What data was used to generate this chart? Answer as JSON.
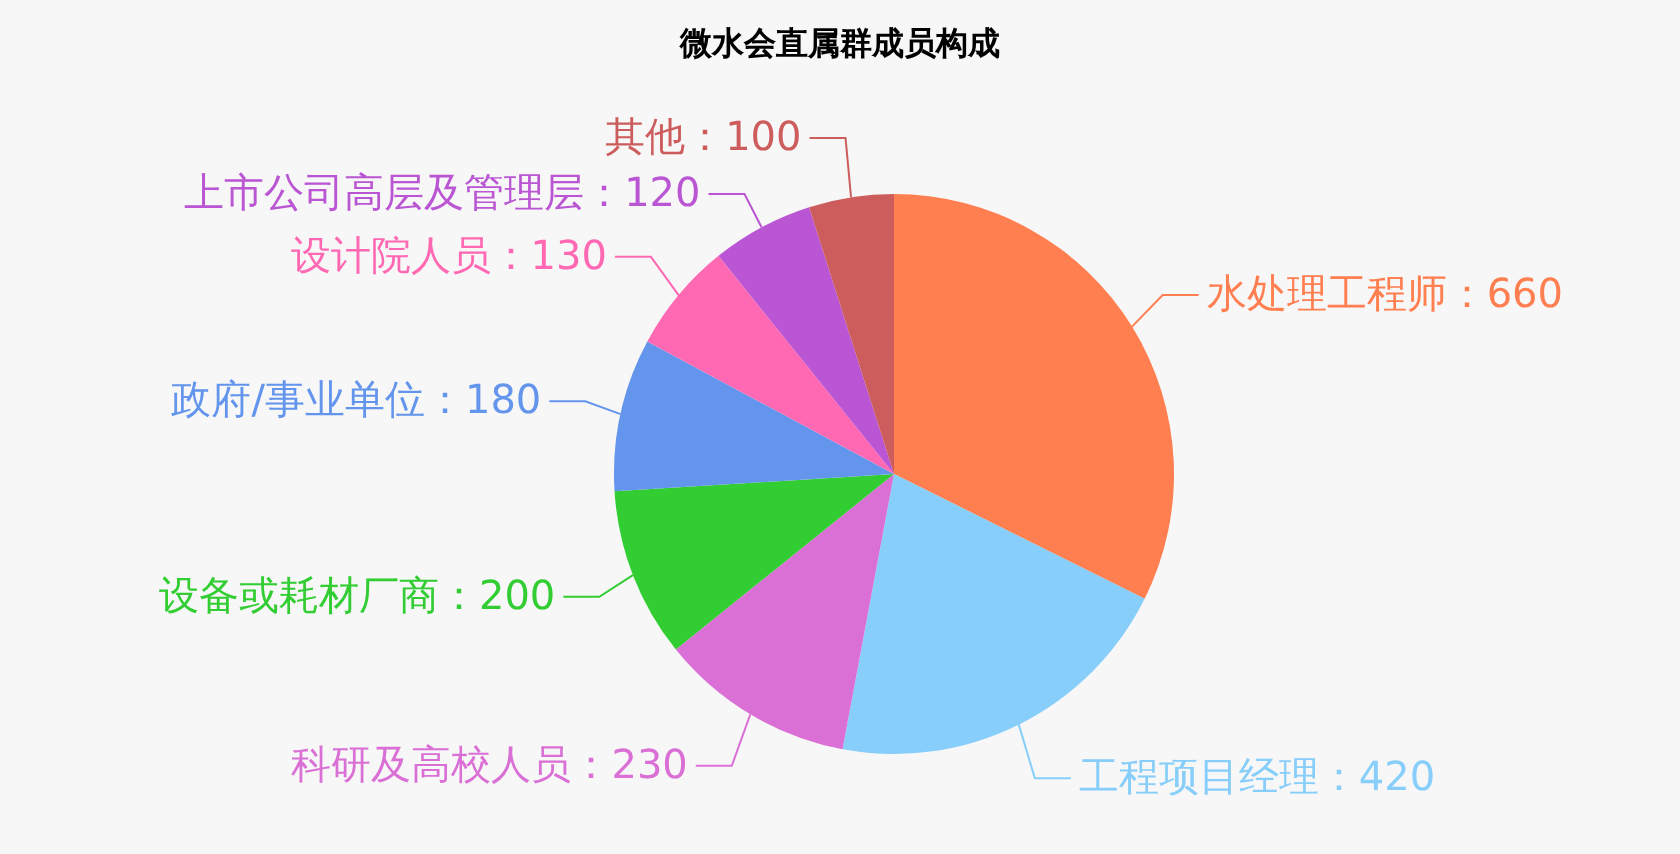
{
  "chart_data": {
    "type": "pie",
    "title": "微水会直属群成员构成",
    "categories": [
      "水处理工程师",
      "工程项目经理",
      "科研及高校人员",
      "设备或耗材厂商",
      "政府/事业单位",
      "设计院人员",
      "上市公司高层及管理层",
      "其他"
    ],
    "values": [
      660,
      420,
      230,
      200,
      180,
      130,
      120,
      100
    ],
    "colors": [
      "#ff7f50",
      "#87cefa",
      "#da70d6",
      "#32cd32",
      "#6495ed",
      "#ff69b4",
      "#ba55d3",
      "#cd5c5c"
    ],
    "value_labels": [
      "：660",
      "：420",
      "：230",
      "：200",
      "：180",
      "：130",
      "：120",
      "：100"
    ]
  }
}
